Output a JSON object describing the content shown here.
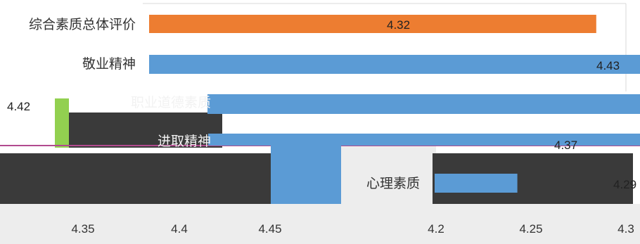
{
  "chart_data": {
    "type": "bar",
    "orientation": "horizontal",
    "categories": [
      "综合素质总体评价",
      "敬业精神",
      "职业道德素质",
      "进取精神",
      "心理素质"
    ],
    "values": [
      4.32,
      4.43,
      4.42,
      4.37,
      4.29
    ],
    "value_labels": [
      "4.32",
      "4.43",
      "4.42",
      "4.37",
      "4.29"
    ],
    "colors": [
      "#ed7d31",
      "#5b9bd5",
      "#5b9bd5",
      "#5b9bd5",
      "#5b9bd5"
    ],
    "xlim": [
      4.15,
      4.45
    ],
    "xticks": [
      "4.35",
      "4.4",
      "4.45",
      "4.2",
      "4.25",
      "4.3"
    ],
    "grid": false,
    "legend": "none",
    "accent_color": "#ed7d31",
    "series_color": "#5b9bd5",
    "glitch_color": "#92d050"
  }
}
